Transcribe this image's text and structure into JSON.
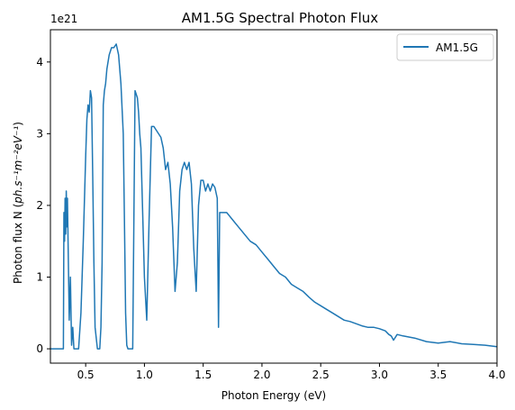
{
  "chart_data": {
    "type": "line",
    "title": "AM1.5G Spectral Photon Flux",
    "xlabel": "Photon Energy (eV)",
    "ylabel_prefix": "Photon flux N (",
    "ylabel_math": "ph.s⁻¹m⁻²eV⁻¹",
    "ylabel_suffix": ")",
    "y_multiplier_label": "1e21",
    "xlim": [
      0.2,
      4.0
    ],
    "ylim": [
      -0.2,
      4.45
    ],
    "y_scale_note": "values in units of 1e21",
    "xticks": [
      0.5,
      1.0,
      1.5,
      2.0,
      2.5,
      3.0,
      3.5,
      4.0
    ],
    "xtick_labels": [
      "0.5",
      "1.0",
      "1.5",
      "2.0",
      "2.5",
      "3.0",
      "3.5",
      "4.0"
    ],
    "yticks": [
      0,
      1,
      2,
      3,
      4
    ],
    "ytick_labels": [
      "0",
      "1",
      "2",
      "3",
      "4"
    ],
    "grid": false,
    "legend_position": "top-right",
    "series": [
      {
        "name": "AM1.5G",
        "color": "#1f77b4",
        "x": [
          0.2,
          0.31,
          0.315,
          0.32,
          0.325,
          0.33,
          0.335,
          0.34,
          0.345,
          0.35,
          0.36,
          0.37,
          0.38,
          0.39,
          0.4,
          0.42,
          0.44,
          0.46,
          0.48,
          0.5,
          0.51,
          0.52,
          0.53,
          0.54,
          0.55,
          0.56,
          0.57,
          0.58,
          0.6,
          0.62,
          0.63,
          0.64,
          0.65,
          0.66,
          0.67,
          0.68,
          0.7,
          0.72,
          0.74,
          0.76,
          0.78,
          0.8,
          0.82,
          0.83,
          0.84,
          0.85,
          0.86,
          0.87,
          0.88,
          0.89,
          0.9,
          0.92,
          0.94,
          0.95,
          0.96,
          0.97,
          0.98,
          1.0,
          1.02,
          1.04,
          1.06,
          1.08,
          1.1,
          1.12,
          1.14,
          1.16,
          1.18,
          1.2,
          1.22,
          1.24,
          1.26,
          1.28,
          1.3,
          1.32,
          1.34,
          1.36,
          1.38,
          1.4,
          1.42,
          1.44,
          1.46,
          1.48,
          1.5,
          1.52,
          1.54,
          1.56,
          1.58,
          1.6,
          1.62,
          1.63,
          1.64,
          1.65,
          1.7,
          1.75,
          1.8,
          1.85,
          1.9,
          1.95,
          2.0,
          2.05,
          2.1,
          2.15,
          2.2,
          2.25,
          2.3,
          2.35,
          2.4,
          2.45,
          2.5,
          2.55,
          2.6,
          2.65,
          2.7,
          2.75,
          2.8,
          2.85,
          2.9,
          2.95,
          3.0,
          3.05,
          3.08,
          3.1,
          3.12,
          3.15,
          3.2,
          3.3,
          3.4,
          3.5,
          3.6,
          3.7,
          3.8,
          3.9,
          4.0
        ],
        "y": [
          0.0,
          0.0,
          1.9,
          1.5,
          2.1,
          1.6,
          2.2,
          1.7,
          2.1,
          1.5,
          0.4,
          1.0,
          0.05,
          0.3,
          0.0,
          0.0,
          0.0,
          0.5,
          1.5,
          2.7,
          3.2,
          3.4,
          3.3,
          3.6,
          3.5,
          2.4,
          1.2,
          0.3,
          0.0,
          0.0,
          0.3,
          1.2,
          3.4,
          3.6,
          3.7,
          3.9,
          4.1,
          4.2,
          4.2,
          4.25,
          4.1,
          3.7,
          3.0,
          1.8,
          0.5,
          0.05,
          0.0,
          0.0,
          0.0,
          0.0,
          0.0,
          3.6,
          3.5,
          3.3,
          3.0,
          2.8,
          2.2,
          1.0,
          0.4,
          1.8,
          3.1,
          3.1,
          3.05,
          3.0,
          2.95,
          2.8,
          2.5,
          2.6,
          2.3,
          1.7,
          0.8,
          1.2,
          2.2,
          2.5,
          2.6,
          2.5,
          2.6,
          2.3,
          1.4,
          0.8,
          2.0,
          2.35,
          2.35,
          2.2,
          2.3,
          2.2,
          2.3,
          2.25,
          2.1,
          0.3,
          1.9,
          1.9,
          1.9,
          1.8,
          1.7,
          1.6,
          1.5,
          1.45,
          1.35,
          1.25,
          1.15,
          1.05,
          1.0,
          0.9,
          0.85,
          0.8,
          0.72,
          0.65,
          0.6,
          0.55,
          0.5,
          0.45,
          0.4,
          0.38,
          0.35,
          0.32,
          0.3,
          0.3,
          0.28,
          0.25,
          0.2,
          0.18,
          0.12,
          0.2,
          0.18,
          0.15,
          0.1,
          0.08,
          0.1,
          0.07,
          0.06,
          0.05,
          0.03
        ]
      }
    ]
  }
}
